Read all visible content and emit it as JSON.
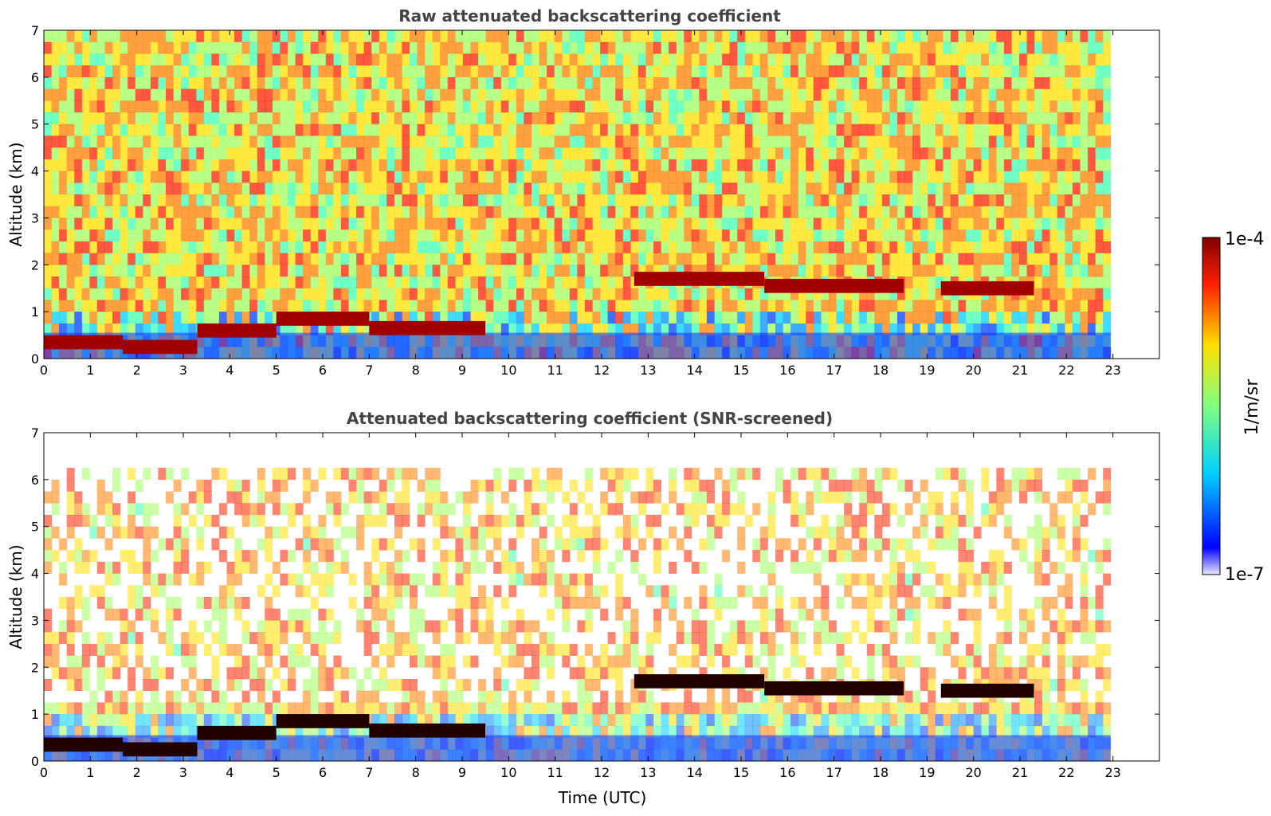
{
  "chart_data": [
    {
      "type": "heatmap",
      "title": "Raw attenuated backscattering coefficient",
      "ylabel": "Altitude (km)",
      "xlabel": "",
      "xlim": [
        0,
        24
      ],
      "ylim": [
        0,
        7
      ],
      "x_ticks": [
        "0",
        "1",
        "2",
        "3",
        "4",
        "5",
        "6",
        "7",
        "8",
        "9",
        "10",
        "11",
        "12",
        "13",
        "14",
        "15",
        "16",
        "17",
        "18",
        "19",
        "20",
        "21",
        "22",
        "23"
      ],
      "y_ticks": [
        "0",
        "1",
        "2",
        "3",
        "4",
        "5",
        "6",
        "7"
      ],
      "data_end_time": 22.95,
      "screened": false,
      "cloud_layers": [
        {
          "start": 0.0,
          "end": 1.7,
          "altitude": 0.35
        },
        {
          "start": 1.7,
          "end": 3.3,
          "altitude": 0.25
        },
        {
          "start": 3.3,
          "end": 5.0,
          "altitude": 0.6
        },
        {
          "start": 5.0,
          "end": 7.0,
          "altitude": 0.85
        },
        {
          "start": 7.0,
          "end": 9.5,
          "altitude": 0.65
        },
        {
          "start": 12.7,
          "end": 15.5,
          "altitude": 1.7
        },
        {
          "start": 15.5,
          "end": 18.5,
          "altitude": 1.55
        },
        {
          "start": 19.3,
          "end": 21.3,
          "altitude": 1.5
        }
      ]
    },
    {
      "type": "heatmap",
      "title": "Attenuated backscattering coefficient (SNR-screened)",
      "ylabel": "Altitude (km)",
      "xlabel": "Time (UTC)",
      "xlim": [
        0,
        24
      ],
      "ylim": [
        0,
        7
      ],
      "x_ticks": [
        "0",
        "1",
        "2",
        "3",
        "4",
        "5",
        "6",
        "7",
        "8",
        "9",
        "10",
        "11",
        "12",
        "13",
        "14",
        "15",
        "16",
        "17",
        "18",
        "19",
        "20",
        "21",
        "22",
        "23"
      ],
      "y_ticks": [
        "0",
        "1",
        "2",
        "3",
        "4",
        "5",
        "6",
        "7"
      ],
      "data_end_time": 22.95,
      "screened": true,
      "cloud_layers": [
        {
          "start": 0.0,
          "end": 1.7,
          "altitude": 0.35
        },
        {
          "start": 1.7,
          "end": 3.3,
          "altitude": 0.25
        },
        {
          "start": 3.3,
          "end": 5.0,
          "altitude": 0.6
        },
        {
          "start": 5.0,
          "end": 7.0,
          "altitude": 0.85
        },
        {
          "start": 7.0,
          "end": 9.5,
          "altitude": 0.65
        },
        {
          "start": 12.7,
          "end": 15.5,
          "altitude": 1.7
        },
        {
          "start": 15.5,
          "end": 18.5,
          "altitude": 1.55
        },
        {
          "start": 19.3,
          "end": 21.3,
          "altitude": 1.5
        }
      ]
    }
  ],
  "colorbar": {
    "label": "1/m/sr",
    "max_label": "1e-4",
    "min_label": "1e-7",
    "scale": "log",
    "colormap": "jet",
    "stops": [
      "#e8e8ff",
      "#0000ff",
      "#00d0ff",
      "#80ff80",
      "#ffe000",
      "#ff2000",
      "#800000"
    ]
  }
}
